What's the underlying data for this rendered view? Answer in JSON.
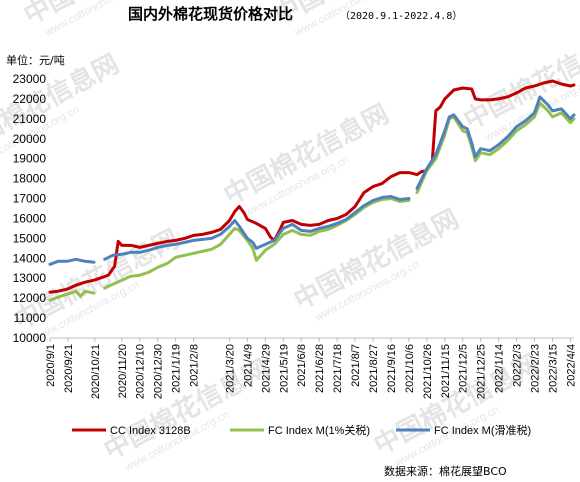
{
  "chart_data": {
    "type": "line",
    "title": "国内外棉花现货价格对比",
    "subtitle": "（2020.9.1-2022.4.8）",
    "unit_label": "单位：元/吨",
    "source": "数据来源：棉花展望BCO",
    "watermark": "中国棉花信息网",
    "watermark_url": "www.cottonchina.org.cn",
    "ylim": [
      10000,
      23000
    ],
    "yticks": [
      "10000",
      "11000",
      "12000",
      "13000",
      "14000",
      "15000",
      "16000",
      "17000",
      "18000",
      "19000",
      "20000",
      "21000",
      "22000",
      "23000"
    ],
    "x_tick_labels": [
      "2020/9/1",
      "2020/9/21",
      "2020/10/21",
      "2020/11/20",
      "2020/12/10",
      "2020/12/30",
      "2021/1/19",
      "2021/2/8",
      "2021/3/20",
      "2021/4/9",
      "2021/4/29",
      "2021/5/19",
      "2021/6/8",
      "2021/6/28",
      "2021/7/18",
      "2021/8/7",
      "2021/8/27",
      "2021/9/16",
      "2021/10/6",
      "2021/10/26",
      "2021/11/15",
      "2021/12/5",
      "2021/12/25",
      "2022/1/14",
      "2022/2/3",
      "2022/2/23",
      "2022/3/15",
      "2022/4/4"
    ],
    "x_range": [
      "2020/9/1",
      "2022/4/8"
    ],
    "grid": false,
    "legend_position": "bottom",
    "series": [
      {
        "name": "CC Index 3128B",
        "color": "#c00000",
        "points": [
          [
            "2020/9/1",
            12300
          ],
          [
            "2020/9/10",
            12350
          ],
          [
            "2020/9/20",
            12450
          ],
          [
            "2020/9/30",
            12650
          ],
          [
            "2020/10/10",
            12800
          ],
          [
            "2020/10/20",
            12900
          ],
          [
            "2020/10/30",
            13050
          ],
          [
            "2020/11/5",
            13150
          ],
          [
            "2020/11/12",
            13600
          ],
          [
            "2020/11/16",
            14850
          ],
          [
            "2020/11/20",
            14650
          ],
          [
            "2020/12/1",
            14650
          ],
          [
            "2020/12/10",
            14550
          ],
          [
            "2020/12/20",
            14650
          ],
          [
            "2020/12/30",
            14750
          ],
          [
            "2021/1/10",
            14850
          ],
          [
            "2021/1/19",
            14900
          ],
          [
            "2021/1/29",
            15000
          ],
          [
            "2021/2/8",
            15150
          ],
          [
            "2021/2/18",
            15200
          ],
          [
            "2021/2/28",
            15300
          ],
          [
            "2021/3/10",
            15450
          ],
          [
            "2021/3/20",
            15900
          ],
          [
            "2021/3/26",
            16350
          ],
          [
            "2021/3/31",
            16600
          ],
          [
            "2021/4/5",
            16300
          ],
          [
            "2021/4/9",
            15950
          ],
          [
            "2021/4/19",
            15750
          ],
          [
            "2021/4/29",
            15500
          ],
          [
            "2021/5/5",
            15050
          ],
          [
            "2021/5/9",
            14900
          ],
          [
            "2021/5/15",
            15400
          ],
          [
            "2021/5/19",
            15800
          ],
          [
            "2021/5/29",
            15900
          ],
          [
            "2021/6/8",
            15700
          ],
          [
            "2021/6/18",
            15650
          ],
          [
            "2021/6/28",
            15700
          ],
          [
            "2021/7/8",
            15900
          ],
          [
            "2021/7/18",
            16000
          ],
          [
            "2021/7/28",
            16200
          ],
          [
            "2021/8/7",
            16600
          ],
          [
            "2021/8/17",
            17300
          ],
          [
            "2021/8/27",
            17600
          ],
          [
            "2021/9/6",
            17750
          ],
          [
            "2021/9/16",
            18100
          ],
          [
            "2021/9/26",
            18300
          ],
          [
            "2021/10/6",
            18300
          ],
          [
            "2021/10/15",
            18200
          ],
          [
            "2021/10/20",
            18350
          ],
          [
            "2021/10/26",
            18400
          ],
          [
            "2021/11/1",
            18800
          ],
          [
            "2021/11/5",
            21400
          ],
          [
            "2021/11/10",
            21600
          ],
          [
            "2021/11/15",
            22000
          ],
          [
            "2021/11/25",
            22450
          ],
          [
            "2021/12/5",
            22550
          ],
          [
            "2021/12/15",
            22500
          ],
          [
            "2021/12/19",
            22000
          ],
          [
            "2021/12/25",
            21950
          ],
          [
            "2022/1/4",
            21950
          ],
          [
            "2022/1/14",
            22000
          ],
          [
            "2022/1/24",
            22100
          ],
          [
            "2022/2/3",
            22300
          ],
          [
            "2022/2/13",
            22550
          ],
          [
            "2022/2/23",
            22650
          ],
          [
            "2022/3/5",
            22800
          ],
          [
            "2022/3/15",
            22900
          ],
          [
            "2022/3/25",
            22750
          ],
          [
            "2022/4/4",
            22650
          ],
          [
            "2022/4/8",
            22700
          ]
        ]
      },
      {
        "name": "FC Index M(1%关税)",
        "color": "#92c050",
        "points": [
          [
            "2020/9/1",
            11900
          ],
          [
            "2020/9/10",
            12050
          ],
          [
            "2020/9/20",
            12200
          ],
          [
            "2020/9/30",
            12350
          ],
          [
            "2020/10/5",
            12100
          ],
          [
            "2020/10/10",
            12350
          ],
          [
            "2020/10/20",
            12250
          ],
          [
            "2020/10/25",
            null
          ],
          [
            "2020/11/1",
            12500
          ],
          [
            "2020/11/10",
            12700
          ],
          [
            "2020/11/20",
            12900
          ],
          [
            "2020/11/30",
            13100
          ],
          [
            "2020/12/10",
            13150
          ],
          [
            "2020/12/20",
            13300
          ],
          [
            "2020/12/30",
            13550
          ],
          [
            "2021/1/10",
            13750
          ],
          [
            "2021/1/19",
            14050
          ],
          [
            "2021/1/29",
            14150
          ],
          [
            "2021/2/8",
            14250
          ],
          [
            "2021/2/18",
            14350
          ],
          [
            "2021/2/28",
            14450
          ],
          [
            "2021/3/10",
            14700
          ],
          [
            "2021/3/20",
            15200
          ],
          [
            "2021/3/26",
            15500
          ],
          [
            "2021/3/31",
            15400
          ],
          [
            "2021/4/9",
            14900
          ],
          [
            "2021/4/15",
            14500
          ],
          [
            "2021/4/19",
            13900
          ],
          [
            "2021/4/29",
            14400
          ],
          [
            "2021/5/9",
            14700
          ],
          [
            "2021/5/19",
            15200
          ],
          [
            "2021/5/29",
            15400
          ],
          [
            "2021/6/8",
            15200
          ],
          [
            "2021/6/18",
            15150
          ],
          [
            "2021/6/28",
            15350
          ],
          [
            "2021/7/8",
            15450
          ],
          [
            "2021/7/18",
            15650
          ],
          [
            "2021/7/28",
            15900
          ],
          [
            "2021/8/7",
            16200
          ],
          [
            "2021/8/17",
            16550
          ],
          [
            "2021/8/27",
            16800
          ],
          [
            "2021/9/6",
            16950
          ],
          [
            "2021/9/16",
            17000
          ],
          [
            "2021/9/26",
            16850
          ],
          [
            "2021/10/6",
            16900
          ],
          [
            "2021/10/10",
            null
          ],
          [
            "2021/10/15",
            17300
          ],
          [
            "2021/10/26",
            18400
          ],
          [
            "2021/11/5",
            19000
          ],
          [
            "2021/11/10",
            19600
          ],
          [
            "2021/11/15",
            20200
          ],
          [
            "2021/11/20",
            21000
          ],
          [
            "2021/11/25",
            21100
          ],
          [
            "2021/12/5",
            20400
          ],
          [
            "2021/12/10",
            20300
          ],
          [
            "2021/12/15",
            19600
          ],
          [
            "2021/12/19",
            18900
          ],
          [
            "2021/12/25",
            19300
          ],
          [
            "2022/1/4",
            19200
          ],
          [
            "2022/1/14",
            19500
          ],
          [
            "2022/1/24",
            19900
          ],
          [
            "2022/2/3",
            20400
          ],
          [
            "2022/2/13",
            20700
          ],
          [
            "2022/2/23",
            21100
          ],
          [
            "2022/3/1",
            21800
          ],
          [
            "2022/3/10",
            21400
          ],
          [
            "2022/3/15",
            21100
          ],
          [
            "2022/3/25",
            21300
          ],
          [
            "2022/4/4",
            20800
          ],
          [
            "2022/4/8",
            21000
          ]
        ]
      },
      {
        "name": "FC Index M(滑准税)",
        "color": "#4f81bd",
        "points": [
          [
            "2020/9/1",
            13700
          ],
          [
            "2020/9/10",
            13850
          ],
          [
            "2020/9/20",
            13850
          ],
          [
            "2020/9/30",
            13950
          ],
          [
            "2020/10/10",
            13850
          ],
          [
            "2020/10/20",
            13800
          ],
          [
            "2020/10/25",
            null
          ],
          [
            "2020/11/1",
            13950
          ],
          [
            "2020/11/10",
            14150
          ],
          [
            "2020/11/20",
            14200
          ],
          [
            "2020/11/30",
            14300
          ],
          [
            "2020/12/10",
            14300
          ],
          [
            "2020/12/20",
            14400
          ],
          [
            "2020/12/30",
            14550
          ],
          [
            "2021/1/10",
            14650
          ],
          [
            "2021/1/19",
            14700
          ],
          [
            "2021/1/29",
            14800
          ],
          [
            "2021/2/8",
            14900
          ],
          [
            "2021/2/18",
            14950
          ],
          [
            "2021/2/28",
            15000
          ],
          [
            "2021/3/10",
            15200
          ],
          [
            "2021/3/20",
            15600
          ],
          [
            "2021/3/26",
            15900
          ],
          [
            "2021/3/31",
            15600
          ],
          [
            "2021/4/9",
            15000
          ],
          [
            "2021/4/15",
            14800
          ],
          [
            "2021/4/19",
            14500
          ],
          [
            "2021/4/29",
            14700
          ],
          [
            "2021/5/9",
            14900
          ],
          [
            "2021/5/19",
            15500
          ],
          [
            "2021/5/29",
            15700
          ],
          [
            "2021/6/8",
            15400
          ],
          [
            "2021/6/18",
            15350
          ],
          [
            "2021/6/28",
            15500
          ],
          [
            "2021/7/8",
            15600
          ],
          [
            "2021/7/18",
            15750
          ],
          [
            "2021/7/28",
            15950
          ],
          [
            "2021/8/7",
            16300
          ],
          [
            "2021/8/17",
            16650
          ],
          [
            "2021/8/27",
            16900
          ],
          [
            "2021/9/6",
            17050
          ],
          [
            "2021/9/16",
            17100
          ],
          [
            "2021/9/26",
            16950
          ],
          [
            "2021/10/6",
            17000
          ],
          [
            "2021/10/10",
            null
          ],
          [
            "2021/10/15",
            17500
          ],
          [
            "2021/10/26",
            18500
          ],
          [
            "2021/11/5",
            19200
          ],
          [
            "2021/11/10",
            19800
          ],
          [
            "2021/11/15",
            20400
          ],
          [
            "2021/11/20",
            21100
          ],
          [
            "2021/11/25",
            21200
          ],
          [
            "2021/12/5",
            20600
          ],
          [
            "2021/12/10",
            20500
          ],
          [
            "2021/12/15",
            19800
          ],
          [
            "2021/12/19",
            19100
          ],
          [
            "2021/12/25",
            19500
          ],
          [
            "2022/1/4",
            19400
          ],
          [
            "2022/1/14",
            19700
          ],
          [
            "2022/1/24",
            20100
          ],
          [
            "2022/2/3",
            20600
          ],
          [
            "2022/2/13",
            20900
          ],
          [
            "2022/2/23",
            21300
          ],
          [
            "2022/3/1",
            22100
          ],
          [
            "2022/3/10",
            21700
          ],
          [
            "2022/3/15",
            21400
          ],
          [
            "2022/3/25",
            21500
          ],
          [
            "2022/4/4",
            21000
          ],
          [
            "2022/4/8",
            21200
          ]
        ]
      }
    ]
  }
}
